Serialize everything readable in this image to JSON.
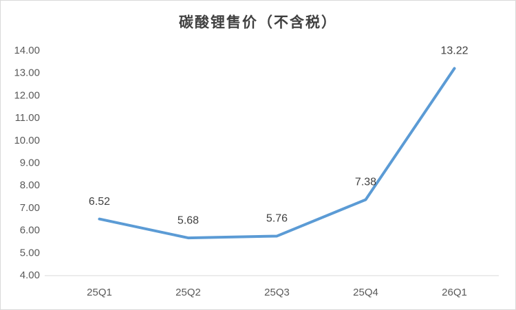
{
  "chart_data": {
    "type": "line",
    "title": "碳酸锂售价（不含税）",
    "categories": [
      "25Q1",
      "25Q2",
      "25Q3",
      "25Q4",
      "26Q1"
    ],
    "values": [
      6.52,
      5.68,
      5.76,
      7.38,
      13.22
    ],
    "color": "#5b9bd5",
    "ylim": [
      4,
      14
    ],
    "yticks": [
      {
        "value": 4,
        "label": "4.00"
      },
      {
        "value": 5,
        "label": "5.00"
      },
      {
        "value": 6,
        "label": "6.00"
      },
      {
        "value": 7,
        "label": "7.00"
      },
      {
        "value": 8,
        "label": "8.00"
      },
      {
        "value": 9,
        "label": "9.00"
      },
      {
        "value": 10,
        "label": "10.00"
      },
      {
        "value": 11,
        "label": "11.00"
      },
      {
        "value": 12,
        "label": "12.00"
      },
      {
        "value": 13,
        "label": "13.00"
      },
      {
        "value": 14,
        "label": "14.00"
      }
    ],
    "grid": false
  }
}
